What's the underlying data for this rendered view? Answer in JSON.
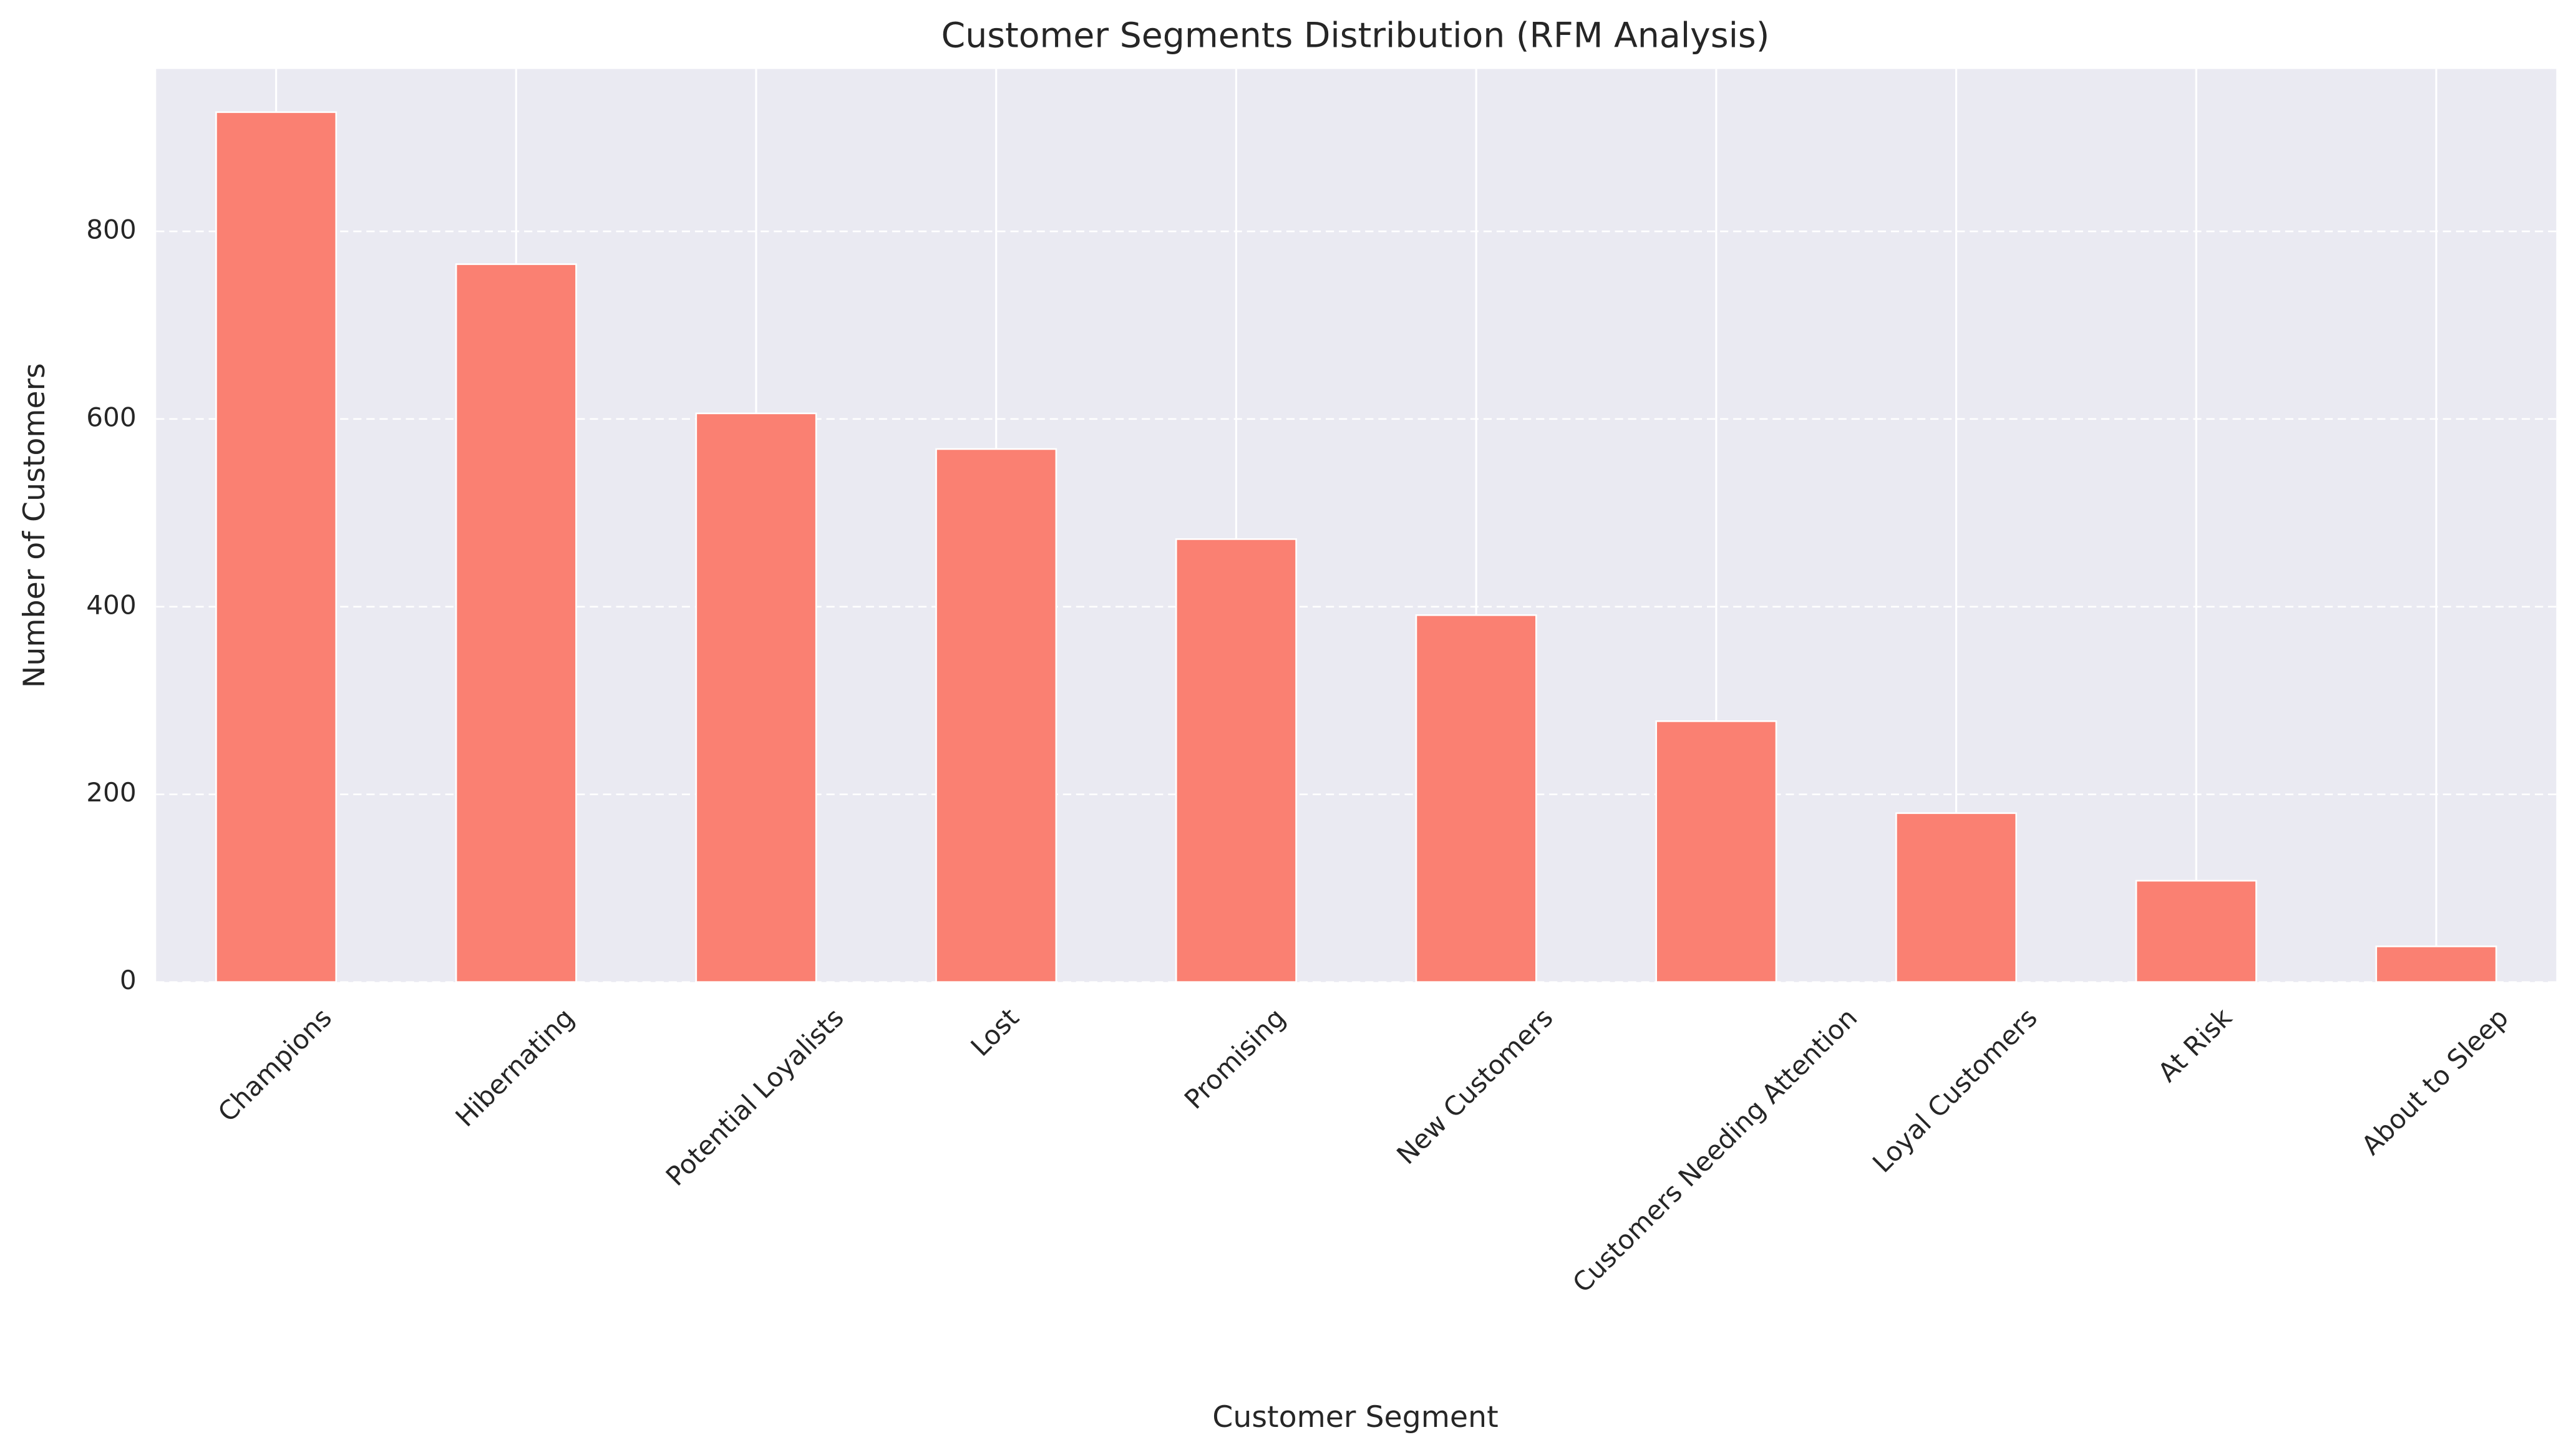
{
  "chart_data": {
    "type": "bar",
    "title": "Customer Segments Distribution (RFM Analysis)",
    "x_label": "Customer Segment",
    "y_label": "Number of Customers",
    "categories": [
      "Champions",
      "Hibernating",
      "Potential Loyalists",
      "Lost",
      "Promising",
      "New Customers",
      "Customers Needing Attention",
      "Loyal Customers",
      "At Risk",
      "About to Sleep"
    ],
    "values": [
      927,
      765,
      606,
      568,
      472,
      391,
      278,
      180,
      108,
      38
    ],
    "color": "#fa8072",
    "ylim": [
      0,
      973
    ],
    "yticks": [
      0,
      200,
      400,
      600,
      800
    ],
    "grid": true
  }
}
